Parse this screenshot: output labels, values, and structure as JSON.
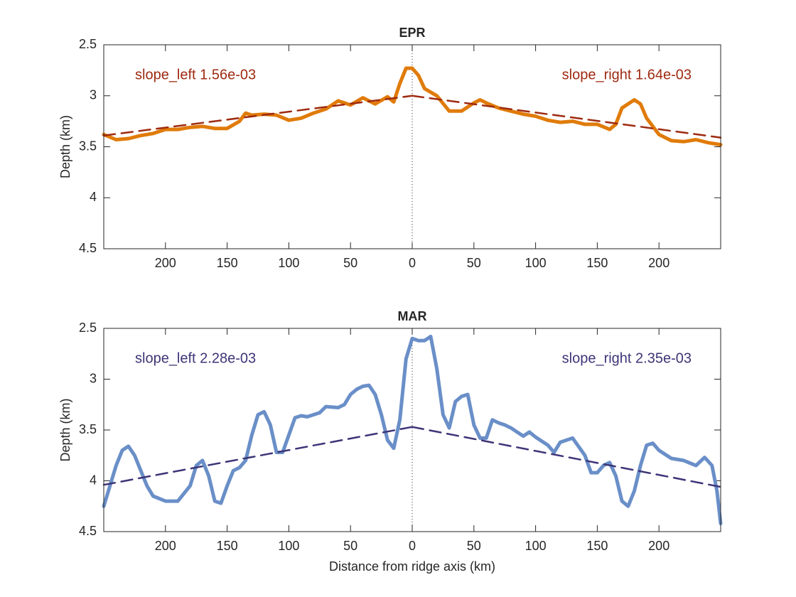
{
  "chart_data": [
    {
      "type": "line",
      "title": "EPR",
      "ylabel": "Depth (km)",
      "xlim": [
        -250,
        250
      ],
      "ylim": [
        2.5,
        4.5
      ],
      "y_reversed": true,
      "xticks": [
        {
          "value": -200,
          "label": "200"
        },
        {
          "value": -150,
          "label": "150"
        },
        {
          "value": -100,
          "label": "100"
        },
        {
          "value": -50,
          "label": "50"
        },
        0,
        50,
        100,
        150,
        200
      ],
      "yticks": [
        2.5,
        3,
        3.5,
        4,
        4.5
      ],
      "vline": 0,
      "x": [
        -250,
        -240,
        -230,
        -220,
        -210,
        -200,
        -190,
        -180,
        -170,
        -160,
        -150,
        -140,
        -135,
        -130,
        -120,
        -110,
        -100,
        -90,
        -80,
        -70,
        -60,
        -50,
        -40,
        -30,
        -20,
        -15,
        -10,
        -5,
        0,
        5,
        10,
        20,
        30,
        40,
        50,
        55,
        60,
        70,
        80,
        90,
        100,
        110,
        120,
        130,
        140,
        150,
        160,
        165,
        170,
        180,
        185,
        190,
        200,
        210,
        220,
        230,
        240,
        250
      ],
      "series": [
        {
          "color": "#e07b0a",
          "width": 5,
          "values": [
            3.38,
            3.43,
            3.42,
            3.39,
            3.37,
            3.33,
            3.33,
            3.31,
            3.3,
            3.32,
            3.32,
            3.25,
            3.17,
            3.19,
            3.18,
            3.19,
            3.24,
            3.22,
            3.17,
            3.13,
            3.05,
            3.09,
            3.02,
            3.08,
            3.01,
            3.06,
            2.88,
            2.73,
            2.73,
            2.8,
            2.93,
            3.0,
            3.15,
            3.15,
            3.07,
            3.04,
            3.07,
            3.12,
            3.15,
            3.18,
            3.2,
            3.24,
            3.26,
            3.25,
            3.28,
            3.28,
            3.33,
            3.28,
            3.12,
            3.04,
            3.08,
            3.22,
            3.38,
            3.44,
            3.45,
            3.43,
            3.46,
            3.48
          ]
        },
        {
          "color": "#9e2a10",
          "dashed": true,
          "x": [
            -250,
            0
          ],
          "values": [
            3.39,
            3.0
          ]
        },
        {
          "color": "#9e2a10",
          "dashed": true,
          "x": [
            0,
            250
          ],
          "values": [
            3.0,
            3.41
          ]
        }
      ],
      "annotations": [
        {
          "text": "slope_left 1.56e-03",
          "color": "#9e2a10",
          "corner": "upper left"
        },
        {
          "text": "slope_right 1.64e-03",
          "color": "#9e2a10",
          "corner": "upper right"
        }
      ]
    },
    {
      "type": "line",
      "title": "MAR",
      "ylabel": "Depth (km)",
      "xlabel": "Distance from ridge axis (km)",
      "xlim": [
        -250,
        250
      ],
      "ylim": [
        2.5,
        4.5
      ],
      "y_reversed": true,
      "xticks": [
        {
          "value": -200,
          "label": "200"
        },
        {
          "value": -150,
          "label": "150"
        },
        {
          "value": -100,
          "label": "100"
        },
        {
          "value": -50,
          "label": "50"
        },
        0,
        50,
        100,
        150,
        200
      ],
      "yticks": [
        2.5,
        3,
        3.5,
        4,
        4.5
      ],
      "vline": 0,
      "x": [
        -250,
        -240,
        -235,
        -230,
        -225,
        -215,
        -210,
        -200,
        -190,
        -180,
        -175,
        -170,
        -165,
        -160,
        -155,
        -150,
        -145,
        -140,
        -135,
        -130,
        -125,
        -120,
        -115,
        -110,
        -105,
        -100,
        -95,
        -90,
        -85,
        -75,
        -70,
        -60,
        -55,
        -50,
        -45,
        -40,
        -35,
        -30,
        -25,
        -20,
        -15,
        -10,
        -5,
        0,
        5,
        10,
        15,
        20,
        25,
        30,
        35,
        40,
        45,
        50,
        55,
        60,
        65,
        70,
        75,
        80,
        85,
        90,
        95,
        100,
        110,
        115,
        120,
        130,
        140,
        145,
        150,
        155,
        160,
        165,
        170,
        175,
        180,
        185,
        190,
        195,
        200,
        210,
        220,
        230,
        237,
        243,
        247,
        250
      ],
      "series": [
        {
          "color": "#6a8fc8",
          "width": 5,
          "values": [
            4.25,
            3.85,
            3.7,
            3.66,
            3.75,
            4.05,
            4.15,
            4.2,
            4.2,
            4.05,
            3.85,
            3.8,
            3.95,
            4.2,
            4.22,
            4.05,
            3.9,
            3.87,
            3.8,
            3.55,
            3.35,
            3.32,
            3.45,
            3.72,
            3.72,
            3.55,
            3.38,
            3.36,
            3.37,
            3.33,
            3.27,
            3.28,
            3.25,
            3.15,
            3.1,
            3.07,
            3.06,
            3.15,
            3.35,
            3.6,
            3.68,
            3.4,
            2.8,
            2.6,
            2.62,
            2.62,
            2.58,
            2.9,
            3.35,
            3.48,
            3.22,
            3.17,
            3.15,
            3.45,
            3.58,
            3.58,
            3.4,
            3.43,
            3.45,
            3.48,
            3.52,
            3.56,
            3.52,
            3.57,
            3.65,
            3.72,
            3.62,
            3.58,
            3.75,
            3.92,
            3.92,
            3.85,
            3.82,
            3.95,
            4.2,
            4.25,
            4.1,
            3.85,
            3.65,
            3.63,
            3.7,
            3.78,
            3.8,
            3.85,
            3.77,
            3.85,
            4.1,
            4.42
          ]
        },
        {
          "color": "#3d3577",
          "dashed": true,
          "x": [
            -250,
            0
          ],
          "values": [
            4.04,
            3.47
          ]
        },
        {
          "color": "#3d3577",
          "dashed": true,
          "x": [
            0,
            250
          ],
          "values": [
            3.47,
            4.06
          ]
        }
      ],
      "annotations": [
        {
          "text": "slope_left 2.28e-03",
          "color": "#3d3577",
          "corner": "upper left"
        },
        {
          "text": "slope_right 2.35e-03",
          "color": "#3d3577",
          "corner": "upper right"
        }
      ]
    }
  ]
}
